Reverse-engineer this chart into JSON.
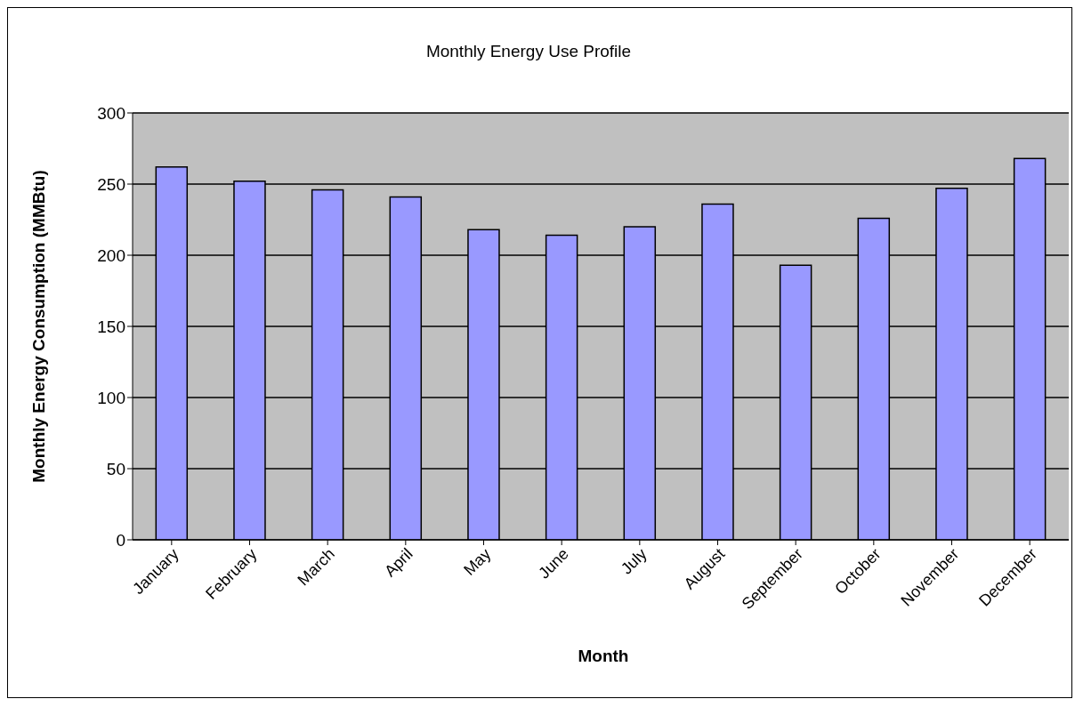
{
  "chart_data": {
    "type": "bar",
    "title": "Monthly Energy Use Profile",
    "xlabel": "Month",
    "ylabel": "Monthly Energy Consumption (MMBtu)",
    "categories": [
      "January",
      "February",
      "March",
      "April",
      "May",
      "June",
      "July",
      "August",
      "September",
      "October",
      "November",
      "December"
    ],
    "series": [
      {
        "color": "#9999ff",
        "values": [
          262,
          252,
          246,
          241,
          218,
          214,
          220,
          236,
          193,
          226,
          247,
          268
        ]
      }
    ],
    "ylim": [
      0,
      300
    ],
    "yticks": [
      0,
      50,
      100,
      150,
      200,
      250,
      300
    ],
    "grid": "y",
    "legend": false
  }
}
